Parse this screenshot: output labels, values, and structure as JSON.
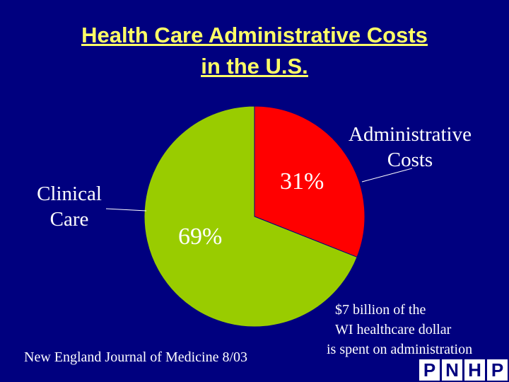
{
  "title": {
    "line1": "Health Care Administrative Costs",
    "line2": "in the U.S."
  },
  "chart_data": {
    "type": "pie",
    "title": "Health Care Administrative Costs in the U.S.",
    "slices": [
      {
        "label": "Administrative Costs",
        "value": 31,
        "value_label": "31%",
        "color": "#ff0000"
      },
      {
        "label": "Clinical Care",
        "value": 69,
        "value_label": "69%",
        "color": "#99cc00"
      }
    ]
  },
  "labels": {
    "admin_line1": "Administrative",
    "admin_line2": "Costs",
    "clinical_line1": "Clinical",
    "clinical_line2": "Care"
  },
  "source": "New England Journal of Medicine 8/03",
  "note": {
    "line1": "$7 billion of the",
    "line2": "WI healthcare dollar",
    "line3": "is spent on administration"
  },
  "logo": {
    "letters": [
      "P",
      "N",
      "H",
      "P"
    ]
  }
}
